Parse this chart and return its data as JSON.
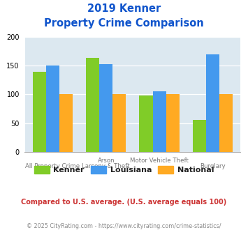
{
  "title_line1": "2019 Kenner",
  "title_line2": "Property Crime Comparison",
  "cat_labels_top": [
    "",
    "Arson",
    "Motor Vehicle Theft",
    ""
  ],
  "cat_labels_bottom": [
    "All Property Crime",
    "Larceny & Theft",
    "",
    "Burglary"
  ],
  "kenner": [
    139,
    163,
    98,
    55
  ],
  "louisiana": [
    150,
    153,
    105,
    170
  ],
  "national": [
    100,
    100,
    100,
    100
  ],
  "kenner_color": "#80cc28",
  "louisiana_color": "#4499ee",
  "national_color": "#ffaa22",
  "ylim": [
    0,
    200
  ],
  "yticks": [
    0,
    50,
    100,
    150,
    200
  ],
  "title_color": "#1155cc",
  "bg_color": "#dce8f0",
  "note_text": "Compared to U.S. average. (U.S. average equals 100)",
  "note_color": "#cc3333",
  "footer_text": "© 2025 CityRating.com - https://www.cityrating.com/crime-statistics/",
  "footer_color": "#888888",
  "legend_labels": [
    "Kenner",
    "Louisiana",
    "National"
  ]
}
